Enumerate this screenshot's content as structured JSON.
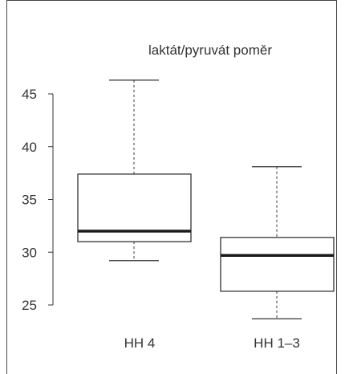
{
  "chart_data": {
    "type": "boxplot",
    "title": "laktát/pyruvát poměr",
    "xlabel": "",
    "ylabel": "",
    "ylim": [
      24,
      49
    ],
    "yticks": [
      25,
      30,
      35,
      40,
      45
    ],
    "grid": false,
    "categories": [
      "HH 4",
      "HH 1–3"
    ],
    "boxes": [
      {
        "category": "HH 4",
        "whisker_low": 29.2,
        "q1": 31.0,
        "median": 32.0,
        "q3": 37.4,
        "whisker_high": 46.3
      },
      {
        "category": "HH 1–3",
        "whisker_low": 23.7,
        "q1": 26.3,
        "median": 29.7,
        "q3": 31.4,
        "whisker_high": 38.1
      }
    ],
    "colors": {
      "box_stroke": "#333333",
      "median": "#1a1a1a",
      "text": "#333333"
    }
  }
}
